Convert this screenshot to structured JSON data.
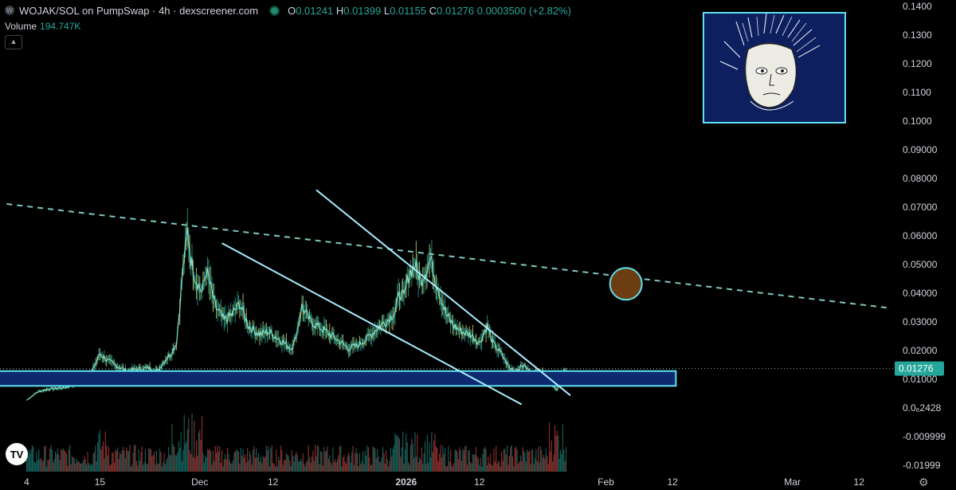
{
  "header": {
    "logo_icon": "W",
    "title": "WOJAK/SOL on PumpSwap · 4h · dexscreener.com",
    "open_label": "O",
    "open": "0.01241",
    "high_label": "H",
    "high": "0.01399",
    "low_label": "L",
    "low": "0.01155",
    "close_label": "C",
    "close": "0.01276",
    "change": "0.0003500 (+2.82%)"
  },
  "volume": {
    "label": "Volume",
    "value": "194.747K"
  },
  "collapse_icon": "chevron-up-icon",
  "tv_logo": "TV",
  "settings_icon": "gear-icon",
  "colors": {
    "up": "#26a69a",
    "down": "#ef5350",
    "price_line": "#7fe0c8",
    "trendline": "#a8ecff",
    "zone": "#0d2a6e",
    "accent": "#5ee2f0",
    "target": "#6b3d10"
  },
  "chart_data": {
    "type": "line",
    "y_ticks": [
      "0.1400",
      "0.1300",
      "0.1200",
      "0.1100",
      "0.1000",
      "0.09000",
      "0.08000",
      "0.07000",
      "0.06000",
      "0.05000",
      "0.04000",
      "0.03000",
      "0.02000",
      "0.01000",
      "0.0₆2428",
      "-0.009999",
      "-0.01999"
    ],
    "x_ticks": [
      {
        "label": "4",
        "i": 0
      },
      {
        "label": "15",
        "i": 66
      },
      {
        "label": "Dec",
        "i": 156
      },
      {
        "label": "12",
        "i": 222
      },
      {
        "label": "2026",
        "i": 342
      },
      {
        "label": "12",
        "i": 408
      },
      {
        "label": "Feb",
        "i": 522
      },
      {
        "label": "12",
        "i": 582
      },
      {
        "label": "Mar",
        "i": 690
      },
      {
        "label": "12",
        "i": 750
      }
    ],
    "x_range_candles": [
      -24,
      780
    ],
    "ylim": [
      -0.024,
      0.142
    ],
    "price_keyframes": [
      [
        0,
        0.0015
      ],
      [
        10,
        0.0045
      ],
      [
        20,
        0.0055
      ],
      [
        35,
        0.006
      ],
      [
        50,
        0.008
      ],
      [
        58,
        0.011
      ],
      [
        66,
        0.018
      ],
      [
        72,
        0.016
      ],
      [
        80,
        0.014
      ],
      [
        90,
        0.012
      ],
      [
        100,
        0.0125
      ],
      [
        110,
        0.013
      ],
      [
        118,
        0.012
      ],
      [
        125,
        0.016
      ],
      [
        130,
        0.018
      ],
      [
        135,
        0.022
      ],
      [
        138,
        0.035
      ],
      [
        140,
        0.045
      ],
      [
        143,
        0.055
      ],
      [
        145,
        0.062
      ],
      [
        148,
        0.052
      ],
      [
        152,
        0.045
      ],
      [
        158,
        0.04
      ],
      [
        162,
        0.048
      ],
      [
        170,
        0.035
      ],
      [
        178,
        0.03
      ],
      [
        185,
        0.032
      ],
      [
        192,
        0.036
      ],
      [
        200,
        0.028
      ],
      [
        210,
        0.025
      ],
      [
        218,
        0.026
      ],
      [
        225,
        0.024
      ],
      [
        232,
        0.022
      ],
      [
        238,
        0.02
      ],
      [
        242,
        0.023
      ],
      [
        248,
        0.035
      ],
      [
        255,
        0.03
      ],
      [
        262,
        0.028
      ],
      [
        270,
        0.026
      ],
      [
        280,
        0.023
      ],
      [
        290,
        0.02
      ],
      [
        298,
        0.021
      ],
      [
        308,
        0.024
      ],
      [
        318,
        0.028
      ],
      [
        325,
        0.03
      ],
      [
        332,
        0.033
      ],
      [
        336,
        0.04
      ],
      [
        340,
        0.038
      ],
      [
        344,
        0.046
      ],
      [
        350,
        0.05
      ],
      [
        355,
        0.044
      ],
      [
        360,
        0.048
      ],
      [
        364,
        0.052
      ],
      [
        368,
        0.045
      ],
      [
        372,
        0.04
      ],
      [
        378,
        0.032
      ],
      [
        385,
        0.028
      ],
      [
        392,
        0.026
      ],
      [
        400,
        0.025
      ],
      [
        408,
        0.022
      ],
      [
        415,
        0.028
      ],
      [
        420,
        0.022
      ],
      [
        428,
        0.018
      ],
      [
        435,
        0.013
      ],
      [
        440,
        0.012
      ],
      [
        448,
        0.014
      ],
      [
        455,
        0.011
      ],
      [
        462,
        0.012
      ],
      [
        468,
        0.011
      ],
      [
        474,
        0.007
      ],
      [
        478,
        0.005
      ],
      [
        482,
        0.009
      ],
      [
        484,
        0.012
      ],
      [
        486,
        0.0128
      ]
    ],
    "volume_series": "per-candle bars, peak near late Nov (~19% of pane)",
    "current_price": "0.01276",
    "trendlines": [
      {
        "style": "dashed",
        "from": [
          -18,
          0.0715
        ],
        "to": [
          775,
          0.0345
        ]
      },
      {
        "style": "solid",
        "from": [
          176,
          0.0575
        ],
        "to": [
          446,
          0.0
        ]
      },
      {
        "style": "solid",
        "from": [
          261,
          0.0765
        ],
        "to": [
          490,
          0.0032
        ]
      }
    ],
    "zone": {
      "from": -25,
      "to": 585,
      "y_top": 0.0119,
      "y_bottom": 0.0066
    },
    "target_circle": {
      "center": [
        540,
        0.043
      ]
    },
    "grid": false,
    "legend": "none"
  }
}
